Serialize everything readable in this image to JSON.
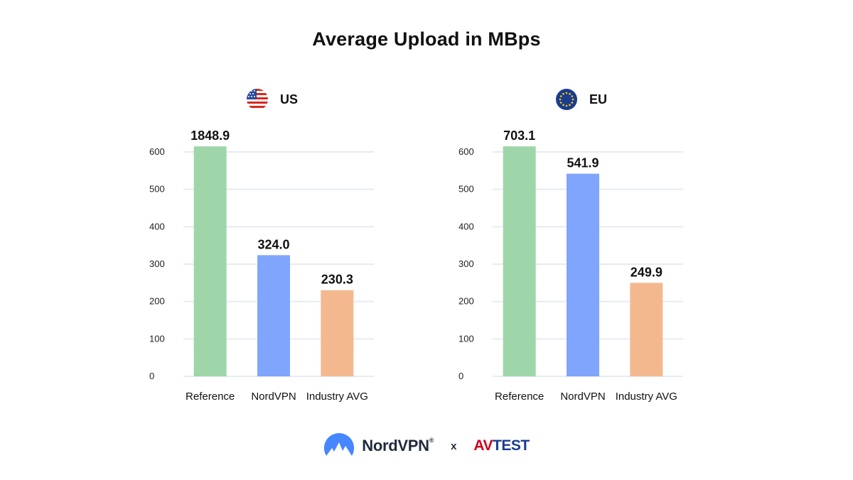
{
  "title": "Average Upload in MBps",
  "chart_data": [
    {
      "type": "bar",
      "region": "US",
      "flag_icon": "us-flag-icon",
      "categories": [
        "Reference",
        "NordVPN",
        "Industry AVG"
      ],
      "values": [
        1848.9,
        324.0,
        230.3
      ],
      "value_labels": [
        "1848.9",
        "324.0",
        "230.3"
      ],
      "bar_colors": [
        "#9fd6a9",
        "#7fa5fc",
        "#f4b88f"
      ],
      "yticks": [
        0,
        100,
        200,
        300,
        400,
        500,
        600
      ],
      "ylim": [
        0,
        600
      ],
      "bar_display_cap": 615,
      "grid": true,
      "title": "US"
    },
    {
      "type": "bar",
      "region": "EU",
      "flag_icon": "eu-flag-icon",
      "categories": [
        "Reference",
        "NordVPN",
        "Industry AVG"
      ],
      "values": [
        703.1,
        541.9,
        249.9
      ],
      "value_labels": [
        "703.1",
        "541.9",
        "249.9"
      ],
      "bar_colors": [
        "#9fd6a9",
        "#7fa5fc",
        "#f4b88f"
      ],
      "yticks": [
        0,
        100,
        200,
        300,
        400,
        500,
        600
      ],
      "ylim": [
        0,
        600
      ],
      "bar_display_cap": 615,
      "grid": true,
      "title": "EU"
    }
  ],
  "footer": {
    "brand": "NordVPN",
    "brand_mark": "®",
    "separator": "x",
    "partner_av": "AV",
    "partner_test": "TEST"
  },
  "colors": {
    "grid": "#e6ebf3",
    "nord_blue": "#4687ff",
    "avtest_red": "#d0021b",
    "avtest_blue": "#1a3d8f"
  }
}
